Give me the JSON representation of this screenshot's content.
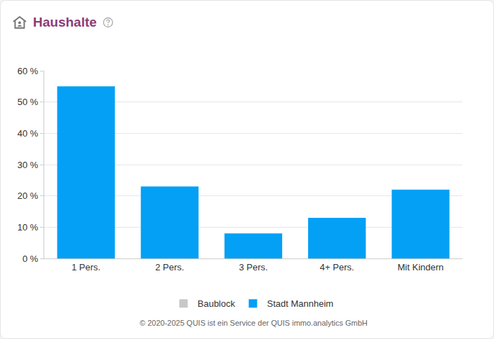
{
  "chart_data": {
    "type": "bar",
    "title": "Haushalte",
    "footer": "© 2020-2025 QUIS ist ein Service der QUIS immo.analytics GmbH",
    "categories": [
      "1 Pers.",
      "2 Pers.",
      "3 Pers.",
      "4+ Pers.",
      "Mit Kindern"
    ],
    "series": [
      {
        "name": "Baublock",
        "color": "#c8c8c8",
        "values": [
          null,
          null,
          null,
          null,
          null
        ]
      },
      {
        "name": "Stadt Mannheim",
        "color": "#03a0f5",
        "values": [
          55,
          23,
          8,
          13,
          22
        ]
      }
    ],
    "ylim": [
      0,
      60
    ],
    "yticks": [
      {
        "value": 0,
        "label": "0 %"
      },
      {
        "value": 10,
        "label": "10 %"
      },
      {
        "value": 20,
        "label": "20 %"
      },
      {
        "value": 30,
        "label": "30 %"
      },
      {
        "value": 40,
        "label": "40 %"
      },
      {
        "value": 50,
        "label": "50 %"
      },
      {
        "value": 60,
        "label": "60 %"
      }
    ],
    "grid": true,
    "legend": "bottom"
  }
}
